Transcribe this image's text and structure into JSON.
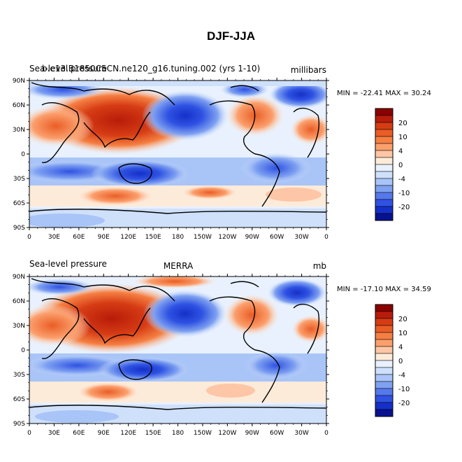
{
  "figure": {
    "title": "DJF-JJA"
  },
  "panels": [
    {
      "left_text": "Sea-level pressure",
      "center_text": "b.e13.B1850C5CN.ne120_g16.tuning.002 (yrs 1-10)",
      "right_text": "millibars",
      "min_max_text": "MIN = -22.41  MAX =  30.24"
    },
    {
      "left_text": "Sea-level pressure",
      "center_text": "MERRA",
      "right_text": "mb",
      "min_max_text": "MIN = -17.10  MAX =  34.59"
    }
  ],
  "axes": {
    "lat_labels": [
      "90N",
      "60N",
      "30N",
      "0",
      "30S",
      "60S",
      "90S"
    ],
    "lon_labels": [
      "0",
      "30E",
      "60E",
      "90E",
      "120E",
      "150E",
      "180",
      "150W",
      "120W",
      "90W",
      "60W",
      "30W",
      "0"
    ]
  },
  "colorbar": {
    "labels": [
      "20",
      "10",
      "4",
      "0",
      "-4",
      "-10",
      "-20"
    ],
    "colors": [
      "#8b0000",
      "#b81c0a",
      "#d63c14",
      "#ea5d26",
      "#f57f42",
      "#fb9f6c",
      "#fdc6a6",
      "#fdebda",
      "#e8f1fd",
      "#cfe0fb",
      "#a9c4f7",
      "#7fa1f1",
      "#5579ec",
      "#2f52e3",
      "#1530c8",
      "#081290"
    ]
  }
}
